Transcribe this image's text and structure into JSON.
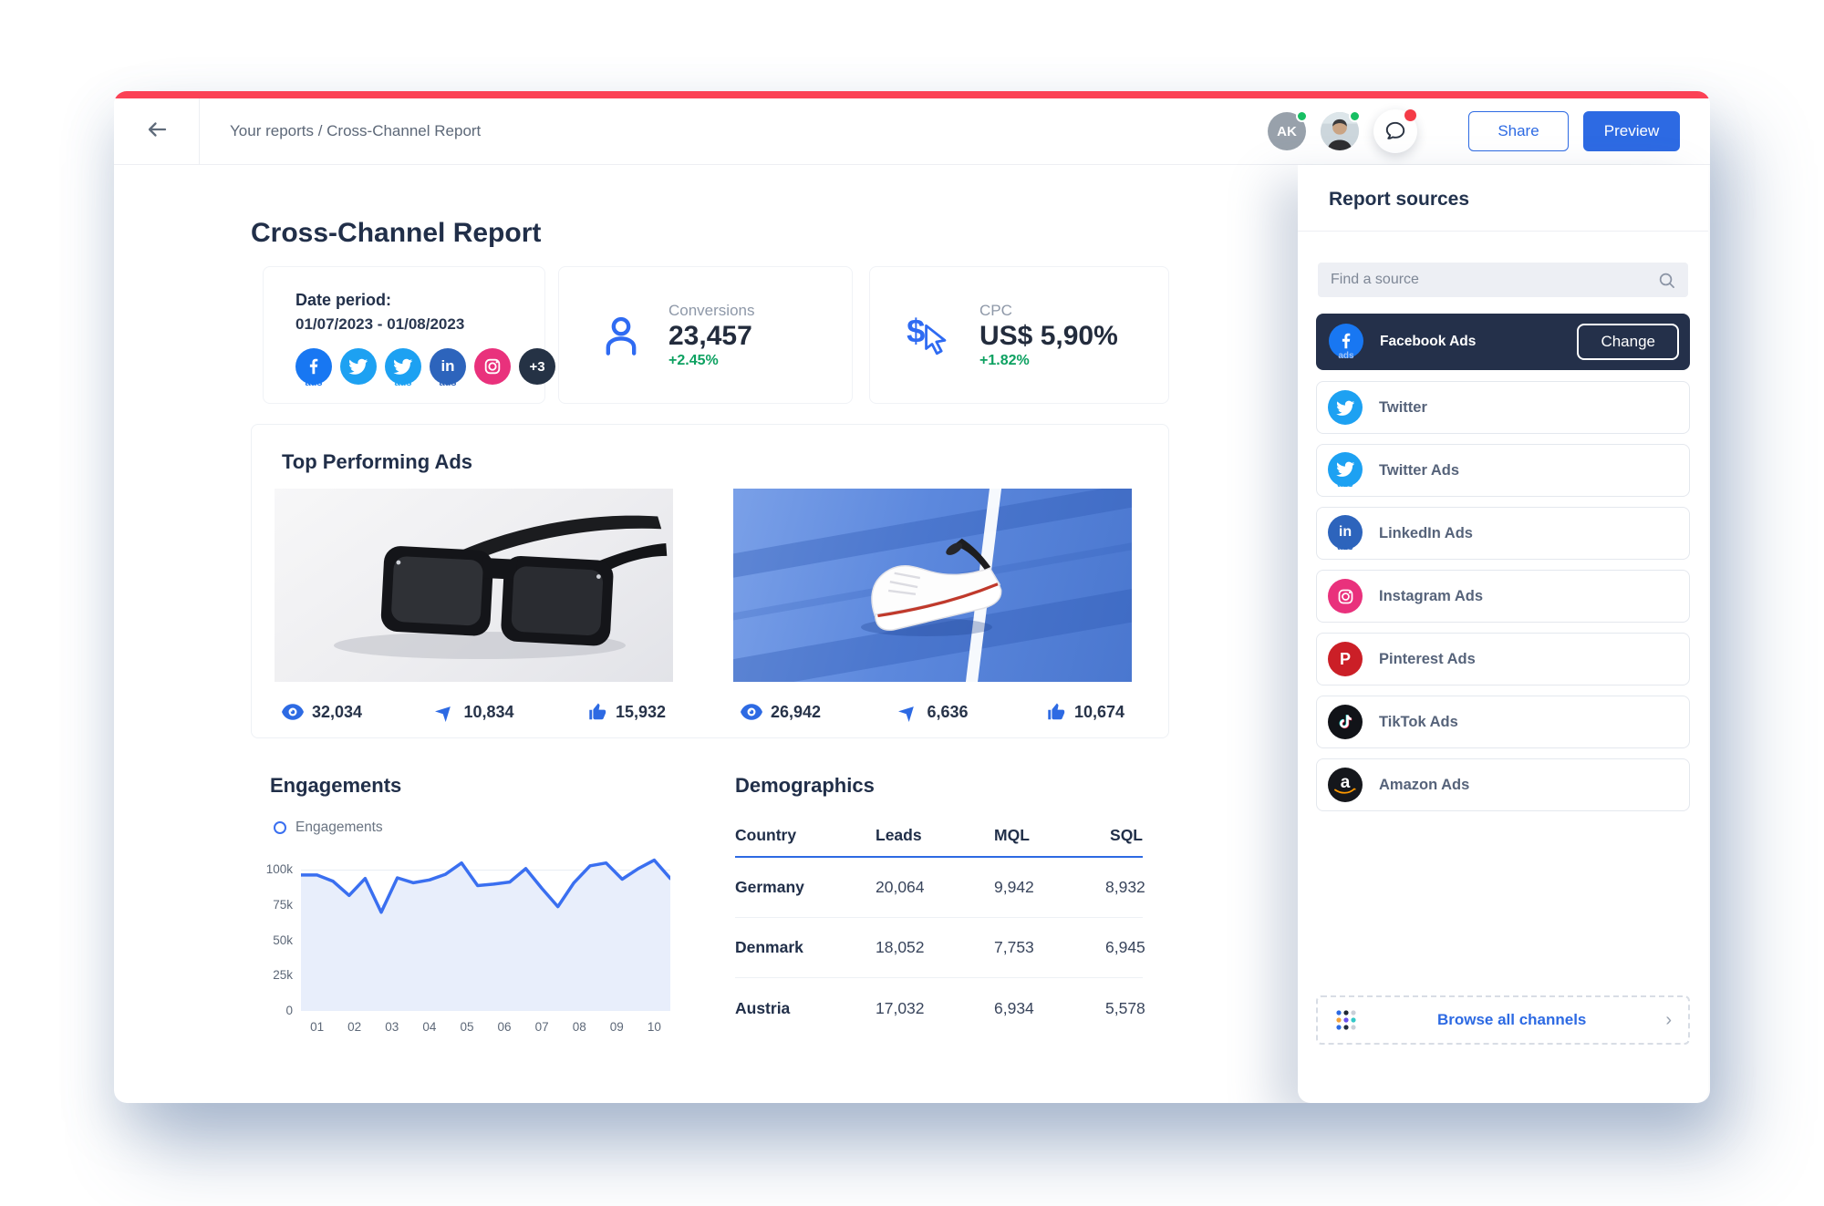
{
  "app": {
    "breadcrumb": "Your reports / Cross-Channel Report",
    "share_label": "Share",
    "preview_label": "Preview",
    "avatar_initials": "AK"
  },
  "report": {
    "title": "Cross-Channel Report",
    "date_period": {
      "label": "Date period:",
      "value": "01/07/2023 - 01/08/2023"
    },
    "channel_chips": {
      "facebook_ads_suffix": "ads",
      "twitter_ads_suffix": "ads",
      "linkedin_ads_suffix": "ads",
      "linkedin_glyph": "in",
      "more_badge": "+3"
    },
    "metrics": [
      {
        "label": "Conversions",
        "value": "23,457",
        "change": "+2.45%"
      },
      {
        "label": "CPC",
        "value": "US$ 5,90%",
        "change": "+1.82%"
      }
    ]
  },
  "top_ads": {
    "title": "Top Performing Ads",
    "ads": [
      {
        "views": "32,034",
        "clicks": "10,834",
        "likes": "15,932"
      },
      {
        "views": "26,942",
        "clicks": "6,636",
        "likes": "10,674"
      }
    ]
  },
  "engagements": {
    "title": "Engagements",
    "legend_label": "Engagements"
  },
  "chart_data": {
    "type": "line",
    "title": "Engagements",
    "series": [
      {
        "name": "Engagements",
        "values_k": [
          96.5,
          96.5,
          92,
          82,
          94,
          70,
          94.5,
          91,
          93,
          97,
          105,
          89,
          90,
          91.5,
          101,
          87,
          74,
          91,
          103,
          105,
          93.5,
          101,
          107,
          94
        ]
      }
    ],
    "x_tick_labels": [
      "01",
      "02",
      "03",
      "04",
      "05",
      "06",
      "07",
      "08",
      "09",
      "10"
    ],
    "y_tick_labels": [
      "100k",
      "75k",
      "50k",
      "25k",
      "0"
    ],
    "y_ticks_k": [
      100,
      75,
      50,
      25,
      0
    ],
    "ylim_k": [
      0,
      110
    ],
    "grid": true,
    "area_fill": true,
    "legend_position": "top-left",
    "line_color": "#3a6ff0",
    "area_color": "#e8eefb"
  },
  "demographics": {
    "title": "Demographics",
    "columns": [
      "Country",
      "Leads",
      "MQL",
      "SQL"
    ],
    "rows": [
      {
        "country": "Germany",
        "leads": "20,064",
        "mql": "9,942",
        "sql": "8,932"
      },
      {
        "country": "Denmark",
        "leads": "18,052",
        "mql": "7,753",
        "sql": "6,945"
      },
      {
        "country": "Austria",
        "leads": "17,032",
        "mql": "6,934",
        "sql": "5,578"
      }
    ]
  },
  "sources_panel": {
    "title": "Report sources",
    "search_placeholder": "Find a source",
    "selected_source": {
      "label": "Facebook Ads",
      "action_label": "Change",
      "ads_suffix": "ads"
    },
    "items": [
      {
        "label": "Twitter"
      },
      {
        "label": "Twitter Ads",
        "ads_suffix": "ads"
      },
      {
        "label": "LinkedIn Ads",
        "ads_suffix": "ads",
        "glyph": "in"
      },
      {
        "label": "Instagram Ads"
      },
      {
        "label": "Pinterest Ads",
        "glyph": "P"
      },
      {
        "label": "TikTok Ads"
      },
      {
        "label": "Amazon Ads",
        "glyph": "a"
      }
    ],
    "browse_label": "Browse all channels"
  },
  "colors": {
    "accent_blue": "#2d6ae3",
    "top_bar_red": "#fb4155",
    "positive_green": "#0da161",
    "dark_navy": "#212f49",
    "selected_card_navy": "#24304a",
    "facebook": "#1877f2",
    "twitter": "#1da1f2",
    "linkedin": "#2d64bc",
    "instagram": "#e9317c",
    "pinterest": "#cb1f27"
  }
}
